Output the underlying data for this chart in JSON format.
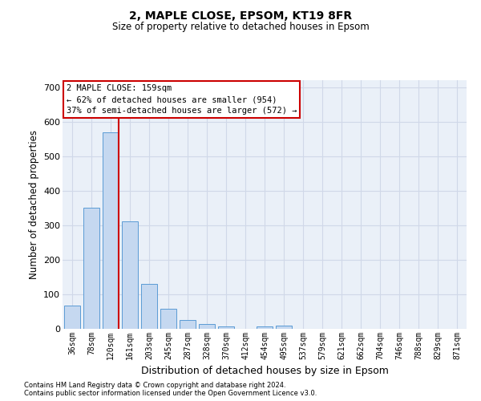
{
  "title1": "2, MAPLE CLOSE, EPSOM, KT19 8FR",
  "title2": "Size of property relative to detached houses in Epsom",
  "xlabel": "Distribution of detached houses by size in Epsom",
  "ylabel": "Number of detached properties",
  "categories": [
    "36sqm",
    "78sqm",
    "120sqm",
    "161sqm",
    "203sqm",
    "245sqm",
    "287sqm",
    "328sqm",
    "370sqm",
    "412sqm",
    "454sqm",
    "495sqm",
    "537sqm",
    "579sqm",
    "621sqm",
    "662sqm",
    "704sqm",
    "746sqm",
    "788sqm",
    "829sqm",
    "871sqm"
  ],
  "values": [
    68,
    350,
    570,
    312,
    130,
    57,
    25,
    14,
    7,
    0,
    8,
    10,
    0,
    0,
    0,
    0,
    0,
    0,
    0,
    0,
    0
  ],
  "bar_color": "#c5d8f0",
  "bar_edge_color": "#5b9bd5",
  "grid_color": "#d0d8e8",
  "bg_color": "#eaf0f8",
  "annotation_box_color": "#ffffff",
  "annotation_box_edge": "#cc0000",
  "vline_color": "#cc0000",
  "vline_pos": 2.43,
  "annotation_line1": "2 MAPLE CLOSE: 159sqm",
  "annotation_line2": "← 62% of detached houses are smaller (954)",
  "annotation_line3": "37% of semi-detached houses are larger (572) →",
  "ylim": [
    0,
    720
  ],
  "yticks": [
    0,
    100,
    200,
    300,
    400,
    500,
    600,
    700
  ],
  "footer1": "Contains HM Land Registry data © Crown copyright and database right 2024.",
  "footer2": "Contains public sector information licensed under the Open Government Licence v3.0."
}
